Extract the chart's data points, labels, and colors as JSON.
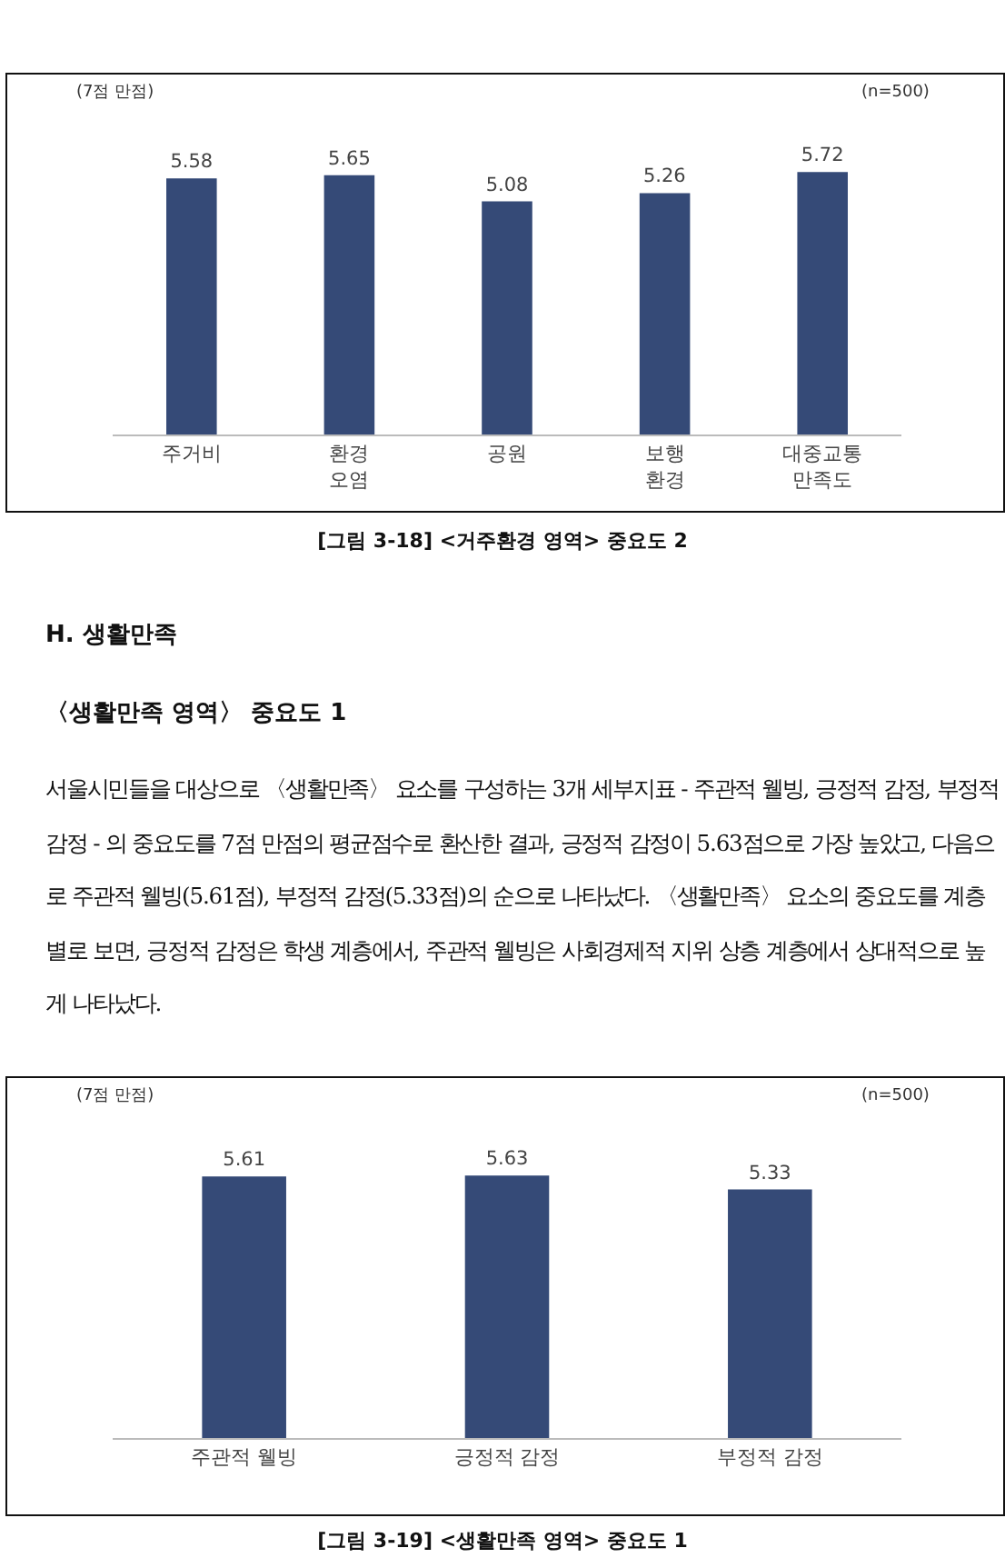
{
  "chart_data": [
    {
      "type": "bar",
      "categories": [
        "주거비",
        "환경\n오염",
        "공원",
        "보행\n환경",
        "대중교통\n만족도"
      ],
      "values": [
        5.58,
        5.65,
        5.08,
        5.26,
        5.72
      ],
      "color": "#354a77",
      "data_labels": true,
      "tick_labels": "x",
      "grid": false,
      "legend": false,
      "annotations": [
        "(7점 만점)",
        "(n=500)",
        "[그림 3-18] <거주환경 영역> 중요도 2"
      ]
    },
    {
      "type": "bar",
      "title": "H. 생활만족",
      "subtitle": "〈생활만족 영역〉 중요도 1",
      "categories": [
        "주관적 웰빙",
        "긍정적 감정",
        "부정적 감정"
      ],
      "values": [
        5.61,
        5.63,
        5.33
      ],
      "color": "#354a77",
      "data_labels": true,
      "tick_labels": "x",
      "grid": false,
      "legend": false,
      "annotations": [
        "서울시민들을 대상으로 〈생활만족〉 요소를 구성하는 3개 세부지표 - 주관적 웰빙, 긍정적 감정, 부정적 감정 - 의 중요도를 7점 만점의 평균점수로 환산한 결과, 긍정적 감정이 5.63점으로 가장 높았고, 다음으로 주관적 웰빙(5.61점), 부정적 감정(5.33점)의 순으로 나타났다. 〈생활만족〉 요소의 중요도를 계층별로 보면, 긍정적 감정은 학생 계층에서, 주관적 웰빙은 사회경제적 지위 상층 계층에서 상대적으로 높게 나타났다.",
        "(7점 만점)",
        "(n=500)",
        "[그림 3-19] <생활만족 영역> 중요도 1"
      ]
    }
  ]
}
